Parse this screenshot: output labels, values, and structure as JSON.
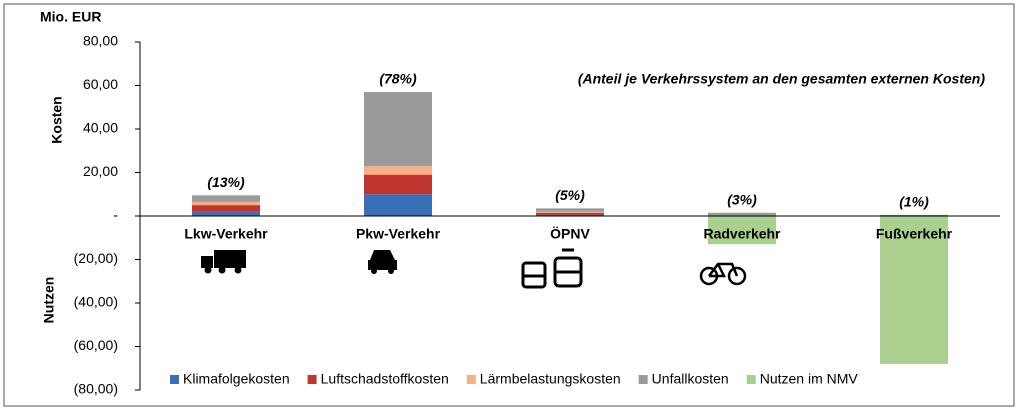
{
  "chart_data": {
    "type": "bar",
    "stacked": true,
    "y_unit": "Mio. EUR",
    "y_label_top": "Kosten",
    "y_label_bottom": "Nutzen",
    "note": "(Anteil je Verkehrssystem an den gesamten externen Kosten)",
    "categories": [
      "Lkw-Verkehr",
      "Pkw-Verkehr",
      "ÖPNV",
      "Radverkehr",
      "Fußverkehr"
    ],
    "share_labels": [
      "(13%)",
      "(78%)",
      "(5%)",
      "(3%)",
      "(1%)"
    ],
    "series": [
      {
        "name": "Klimafolgekosten",
        "color": "#3a6fb7",
        "values": [
          2,
          10,
          0.5,
          0,
          0
        ]
      },
      {
        "name": "Luftschadstoffkosten",
        "color": "#c0352f",
        "values": [
          3,
          9,
          1,
          0,
          0
        ]
      },
      {
        "name": "Lärmbelastungskosten",
        "color": "#f5b183",
        "values": [
          1.5,
          4,
          0.5,
          0,
          0
        ]
      },
      {
        "name": "Unfallkosten",
        "color": "#9a9a9a",
        "values": [
          3,
          34,
          1.5,
          1.5,
          0.5
        ]
      },
      {
        "name": "Nutzen im NMV",
        "color": "#a9d08e",
        "values": [
          0,
          0,
          0,
          -13,
          -68
        ]
      }
    ],
    "ylim": [
      -80,
      80
    ],
    "yticks": [
      {
        "value": -80,
        "label": "(80,00)"
      },
      {
        "value": -60,
        "label": "(60,00)"
      },
      {
        "value": -40,
        "label": "(40,00)"
      },
      {
        "value": -20,
        "label": "(20,00)"
      },
      {
        "value": 0,
        "label": "-"
      },
      {
        "value": 20,
        "label": "20,00"
      },
      {
        "value": 40,
        "label": "40,00"
      },
      {
        "value": 60,
        "label": "60,00"
      },
      {
        "value": 80,
        "label": "80,00"
      }
    ],
    "legend": "bottom"
  }
}
